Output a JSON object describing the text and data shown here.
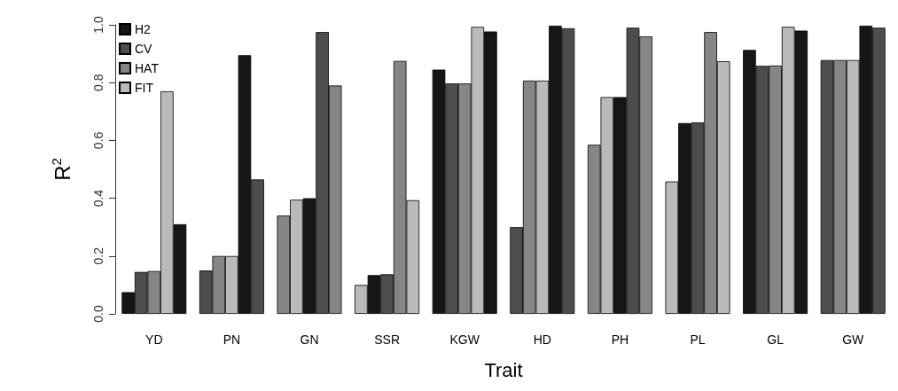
{
  "chart_data": {
    "type": "bar",
    "xlabel": "Trait",
    "ylabel": "R$^{2}$",
    "categories": [
      "YD",
      "PN",
      "GN",
      "SSR",
      "KGW",
      "HD",
      "PH",
      "PL",
      "GL",
      "GW"
    ],
    "series": [
      {
        "name": "H2",
        "color": "#161616",
        "colors": [
          "#161616",
          "#4d4d4d",
          "#868686",
          "#bababa",
          "#161616",
          "#4d4d4d",
          "#868686",
          "#bababa",
          "#161616",
          "#4d4d4d"
        ],
        "values": [
          0.075,
          0.15,
          0.34,
          0.1,
          0.845,
          0.3,
          0.585,
          0.458,
          0.913,
          0.878
        ]
      },
      {
        "name": "CV",
        "color": "#4d4d4d",
        "colors": [
          "#4d4d4d",
          "#868686",
          "#bababa",
          "#161616",
          "#4d4d4d",
          "#868686",
          "#bababa",
          "#161616",
          "#4d4d4d",
          "#868686"
        ],
        "values": [
          0.145,
          0.2,
          0.395,
          0.134,
          0.797,
          0.807,
          0.75,
          0.66,
          0.858,
          0.878
        ]
      },
      {
        "name": "HAT",
        "color": "#868686",
        "colors": [
          "#868686",
          "#bababa",
          "#161616",
          "#4d4d4d",
          "#868686",
          "#bababa",
          "#161616",
          "#4d4d4d",
          "#868686",
          "#bababa"
        ],
        "values": [
          0.148,
          0.2,
          0.4,
          0.137,
          0.797,
          0.807,
          0.75,
          0.662,
          0.859,
          0.878
        ]
      },
      {
        "name": "FIT",
        "color": "#bababa",
        "colors": [
          "#bababa",
          "#161616",
          "#4d4d4d",
          "#868686",
          "#bababa",
          "#161616",
          "#4d4d4d",
          "#868686",
          "#bababa",
          "#161616"
        ],
        "values": [
          0.77,
          0.895,
          0.975,
          0.875,
          0.993,
          0.997,
          0.99,
          0.975,
          0.993,
          0.997
        ]
      },
      {
        "color": "#161616",
        "colors": [
          "#161616",
          "#4d4d4d",
          "#868686",
          "#bababa",
          "#161616",
          "#4d4d4d",
          "#868686",
          "#bababa",
          "#161616",
          "#4d4d4d"
        ],
        "values": [
          0.31,
          0.465,
          0.79,
          0.393,
          0.977,
          0.988,
          0.96,
          0.874,
          0.98,
          0.99
        ]
      }
    ],
    "ylim": [
      0,
      1
    ],
    "yticks": [
      {
        "value": 0,
        "label": "0.0"
      },
      0.2,
      0.4,
      0.6,
      0.8,
      {
        "value": 1,
        "label": "1.0"
      }
    ],
    "grid": false,
    "legend": "top left"
  }
}
